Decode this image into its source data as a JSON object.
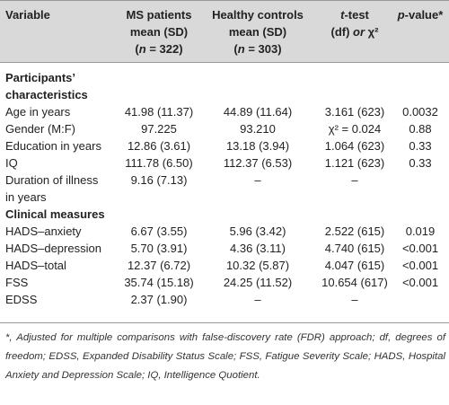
{
  "header": {
    "variable": "Variable",
    "ms_l1": "MS patients",
    "ms_l2": "mean (SD)",
    "ms_l3_pre": "(",
    "ms_l3_n": "n",
    "ms_l3_post": " = 322)",
    "hc_l1": "Healthy controls",
    "hc_l2": "mean (SD)",
    "hc_l3_pre": "(",
    "hc_l3_n": "n",
    "hc_l3_post": " = 303)",
    "tt_l1_t": "t",
    "tt_l1_post": "-test",
    "tt_l2_pre": "(df) ",
    "tt_l2_it": "or",
    "tt_l2_post": " χ²",
    "pv_p": "p",
    "pv_post": "-value*"
  },
  "sections": {
    "participants_l1": "Participants’",
    "participants_l2": "characteristics",
    "clinical": "Clinical measures"
  },
  "rows": [
    {
      "variable": "Age in years",
      "ms": "41.98 (11.37)",
      "hc": "44.89 (11.64)",
      "t": "3.161 (623)",
      "p": "0.0032"
    },
    {
      "variable": "Gender (M:F)",
      "ms": "97.225",
      "hc": "93.210",
      "t": "χ² = 0.024",
      "p": "0.88"
    },
    {
      "variable": "Education in years",
      "ms": "12.86 (3.61)",
      "hc": "13.18 (3.94)",
      "t": "1.064 (623)",
      "p": "0.33"
    },
    {
      "variable": "IQ",
      "ms": "111.78 (6.50)",
      "hc": "112.37 (6.53)",
      "t": "1.121 (623)",
      "p": "0.33"
    },
    {
      "variable_l1": "Duration of illness",
      "variable_l2": "in years",
      "ms": "9.16 (7.13)",
      "hc": "–",
      "t": "–",
      "p": ""
    },
    {
      "variable": "HADS–anxiety",
      "ms": "6.67 (3.55)",
      "hc": "5.96 (3.42)",
      "t": "2.522 (615)",
      "p": "0.019"
    },
    {
      "variable": "HADS–depression",
      "ms": "5.70 (3.91)",
      "hc": "4.36 (3.11)",
      "t": "4.740 (615)",
      "p": "<0.001"
    },
    {
      "variable": "HADS–total",
      "ms": "12.37 (6.72)",
      "hc": "10.32 (5.87)",
      "t": "4.047 (615)",
      "p": "<0.001"
    },
    {
      "variable": "FSS",
      "ms": "35.74 (15.18)",
      "hc": "24.25 (11.52)",
      "t": "10.654 (617)",
      "p": "<0.001"
    },
    {
      "variable": "EDSS",
      "ms": "2.37 (1.90)",
      "hc": "–",
      "t": "–",
      "p": ""
    }
  ],
  "footnote": "*, Adjusted for multiple comparisons with false-discovery rate (FDR) approach; df, degrees of freedom; EDSS, Expanded Disability Status Scale; FSS, Fatigue Severity Scale; HADS, Hospital Anxiety and Depression Scale; IQ, Intelligence Quotient."
}
